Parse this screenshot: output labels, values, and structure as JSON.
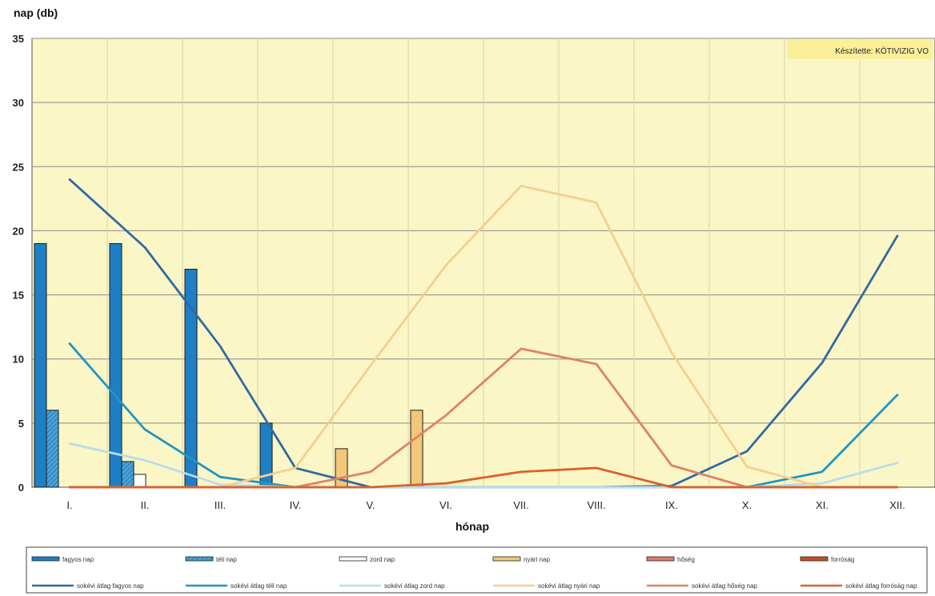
{
  "chart_data": {
    "type": "bar",
    "ylabel": "nap (db)",
    "xlabel": "hónap",
    "annotation": "Készítette: KÖTIVIZIG VO",
    "ylim": [
      0,
      35
    ],
    "yticks": [
      0,
      5,
      10,
      15,
      20,
      25,
      30,
      35
    ],
    "grid": true,
    "legend_position": "bottom",
    "categories": [
      "I.",
      "II.",
      "III.",
      "IV.",
      "V.",
      "VI.",
      "VII.",
      "VIII.",
      "IX.",
      "X.",
      "XI.",
      "XII."
    ],
    "bar_series": [
      {
        "name": "fagyos nap",
        "color": "#1f7fc4",
        "values": [
          19,
          19,
          17,
          5,
          0,
          0,
          0,
          0,
          0,
          0,
          0,
          0
        ]
      },
      {
        "name": "téli nap",
        "color": "#4aa3d8",
        "pattern": "hatched",
        "values": [
          6,
          2,
          0,
          0,
          0,
          0,
          0,
          0,
          0,
          0,
          0,
          0
        ]
      },
      {
        "name": "zord nap",
        "color": "#ffffff",
        "values": [
          0,
          1,
          0,
          0,
          0,
          0,
          0,
          0,
          0,
          0,
          0,
          0
        ]
      },
      {
        "name": "nyári nap",
        "color": "#f2c77a",
        "values": [
          0,
          0,
          0,
          0,
          3,
          6,
          0,
          0,
          0,
          0,
          0,
          0
        ]
      },
      {
        "name": "hőség",
        "color": "#e07a6a",
        "values": [
          0,
          0,
          0,
          0,
          0,
          0,
          0,
          0,
          0,
          0,
          0,
          0
        ]
      },
      {
        "name": "forróság",
        "color": "#c8501e",
        "values": [
          0,
          0,
          0,
          0,
          0,
          0,
          0,
          0,
          0,
          0,
          0,
          0
        ]
      }
    ],
    "line_series": [
      {
        "name": "sokévi átlag fagyos nap",
        "color": "#2f6aa3",
        "values": [
          24.0,
          18.7,
          11.0,
          1.5,
          0.0,
          0.0,
          0.0,
          0.0,
          0.1,
          2.8,
          9.7,
          19.6
        ]
      },
      {
        "name": "sokévi átlag téli nap",
        "color": "#2196c4",
        "values": [
          11.2,
          4.5,
          0.8,
          0.0,
          0.0,
          0.0,
          0.0,
          0.0,
          0.0,
          0.0,
          1.2,
          7.2
        ]
      },
      {
        "name": "sokévi átlag zord nap",
        "color": "#b9dcec",
        "values": [
          3.4,
          2.1,
          0.2,
          0.0,
          0.0,
          0.0,
          0.0,
          0.0,
          0.0,
          0.0,
          0.3,
          1.9
        ]
      },
      {
        "name": "sokévi átlag nyári nap",
        "color": "#f5cf8f",
        "values": [
          0.0,
          0.0,
          0.0,
          1.5,
          9.5,
          17.3,
          23.5,
          22.2,
          10.5,
          1.6,
          0.0,
          0.0
        ]
      },
      {
        "name": "sokévi átlag hőség nap",
        "color": "#e0806a",
        "values": [
          0.0,
          0.0,
          0.0,
          0.0,
          1.2,
          5.6,
          10.8,
          9.6,
          1.7,
          0.0,
          0.0,
          0.0
        ]
      },
      {
        "name": "sokévi átlag forróság nap",
        "color": "#d9622a",
        "values": [
          0.0,
          0.0,
          0.0,
          0.0,
          0.0,
          0.3,
          1.2,
          1.5,
          0.0,
          0.0,
          0.0,
          0.0
        ]
      }
    ]
  }
}
